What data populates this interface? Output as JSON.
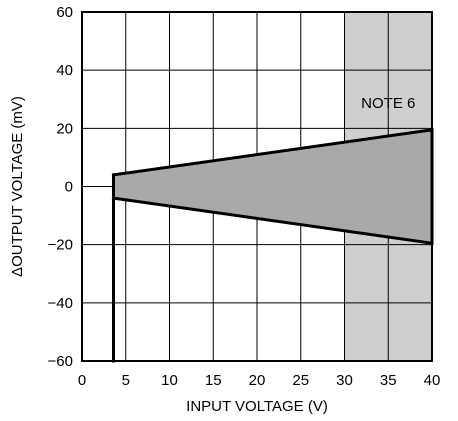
{
  "chart_data": {
    "type": "area",
    "title": "",
    "xlabel": "INPUT VOLTAGE (V)",
    "ylabel": "ΔOUTPUT VOLTAGE (mV)",
    "xlim": [
      0,
      40
    ],
    "ylim": [
      -60,
      60
    ],
    "xticks": [
      0,
      5,
      10,
      15,
      20,
      25,
      30,
      35,
      40
    ],
    "yticks": [
      60,
      40,
      20,
      0,
      -20,
      -40,
      -60
    ],
    "xtick_labels": [
      "0",
      "5",
      "10",
      "15",
      "20",
      "25",
      "30",
      "35",
      "40"
    ],
    "ytick_labels": [
      "60",
      "40",
      "20",
      "0",
      "−20",
      "−40",
      "−60"
    ],
    "grid": true,
    "shaded_region": {
      "x_start": 30,
      "x_end": 40,
      "label": "NOTE 6",
      "color": "#cfcfcf"
    },
    "envelope": {
      "color": "#a9a9a9",
      "upper": [
        [
          3.6,
          4
        ],
        [
          40,
          19.5
        ]
      ],
      "lower": [
        [
          3.6,
          -4
        ],
        [
          40,
          -19.5
        ]
      ]
    },
    "dropout_line": {
      "x": 3.6,
      "y_from": -4,
      "y_to": -60
    }
  }
}
